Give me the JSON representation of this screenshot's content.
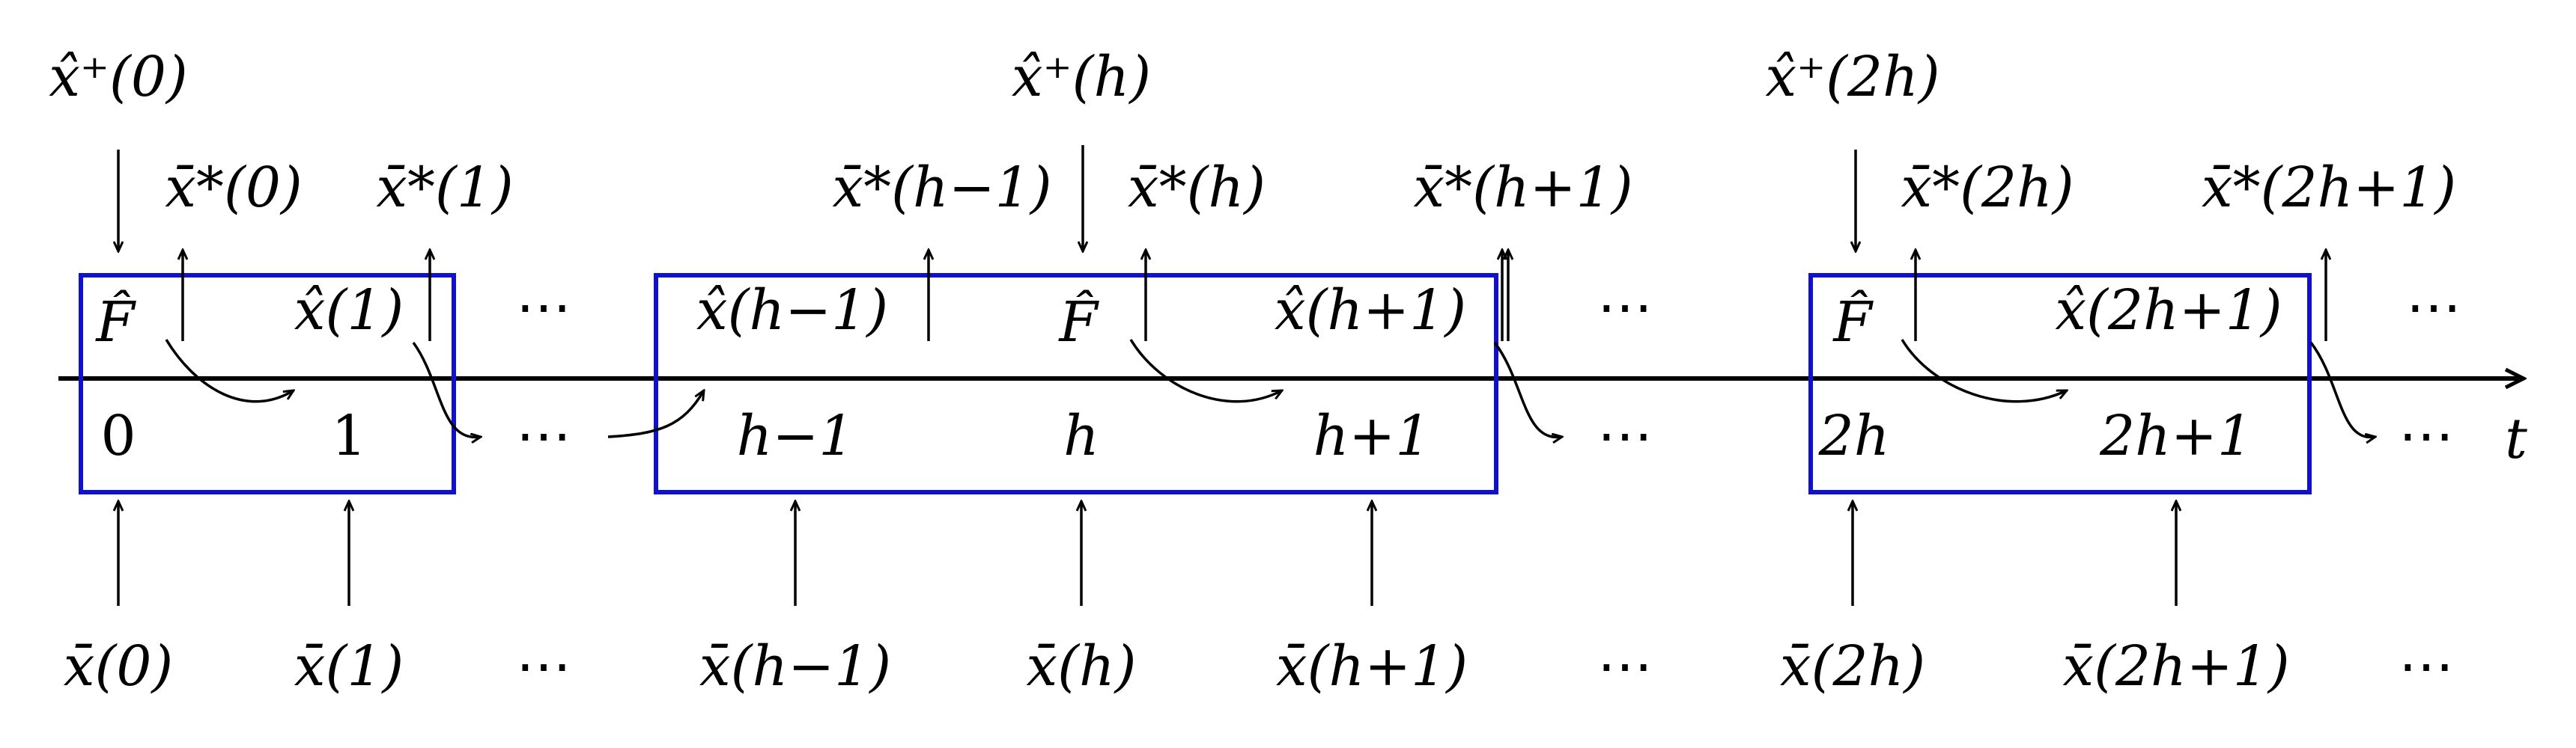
{
  "axis_label": "t",
  "time_labels": [
    "0",
    "1",
    "⋯",
    "h−1",
    "h",
    "h+1",
    "⋯",
    "2h",
    "2h+1",
    "⋯"
  ],
  "measurements": [
    "x̄(0)",
    "x̄(1)",
    "⋯",
    "x̄(h−1)",
    "x̄(h)",
    "x̄(h+1)",
    "⋯",
    "x̄(2h)",
    "x̄(2h+1)",
    "⋯"
  ],
  "warm_starts": [
    "x̂⁺(0)",
    "x̂⁺(h)",
    "x̂⁺(2h)"
  ],
  "outputs": [
    "x̄*(0)",
    "x̄*(1)",
    "x̄*(h−1)",
    "x̄*(h)",
    "x̄*(h+1)",
    "x̄*(2h)",
    "x̄*(2h+1)"
  ],
  "box_labels": [
    "F̂",
    "x̂(1)",
    "x̂(h−1)",
    "F̂",
    "x̂(h+1)",
    "F̂",
    "x̂(2h+1)"
  ],
  "inline_dots": [
    "⋯",
    "⋯",
    "⋯"
  ],
  "colors": {
    "window": "#1010d0",
    "ink": "#000000"
  }
}
